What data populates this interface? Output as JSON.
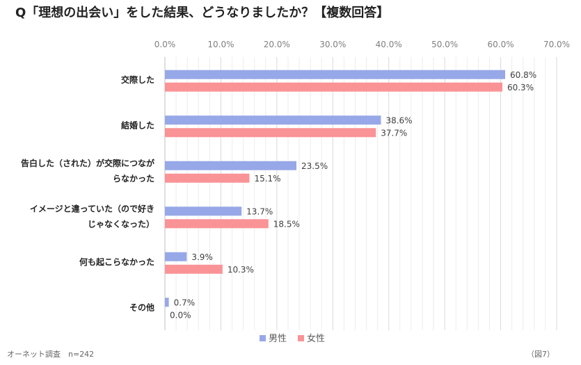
{
  "chart_data": {
    "type": "bar",
    "orientation": "horizontal",
    "title": "Q「理想の出会い」をした結果、どうなりましたか？【複数回答】",
    "categories": [
      [
        "交際した"
      ],
      [
        "結婚した"
      ],
      [
        "告白した（された）が交際につなが",
        "らなかった"
      ],
      [
        "イメージと違っていた（ので好き",
        "じゃなくなった）"
      ],
      [
        "何も起こらなかった"
      ],
      [
        "その他"
      ]
    ],
    "series": [
      {
        "name": "男性",
        "color": "#97a8e8",
        "values": [
          60.8,
          38.6,
          23.5,
          13.7,
          3.9,
          0.7
        ]
      },
      {
        "name": "女性",
        "color": "#fa9396",
        "values": [
          60.3,
          37.7,
          15.1,
          18.5,
          10.3,
          0.0
        ]
      }
    ],
    "xlim": [
      0,
      70
    ],
    "ticks": [
      0,
      10,
      20,
      30,
      40,
      50,
      60,
      70
    ],
    "tick_labels": [
      "0.0%",
      "10.0%",
      "20.0%",
      "30.0%",
      "40.0%",
      "50.0%",
      "60.0%",
      "70.0%"
    ],
    "data_labels": [
      [
        "60.8%",
        "38.6%",
        "23.5%",
        "13.7%",
        "3.9%",
        "0.7%"
      ],
      [
        "60.3%",
        "37.7%",
        "15.1%",
        "18.5%",
        "10.3%",
        "0.0%"
      ]
    ],
    "grid": true,
    "legend_position": "bottom"
  },
  "footer": {
    "source": "オーネット調査　n=242",
    "figure_number": "（図7）"
  }
}
